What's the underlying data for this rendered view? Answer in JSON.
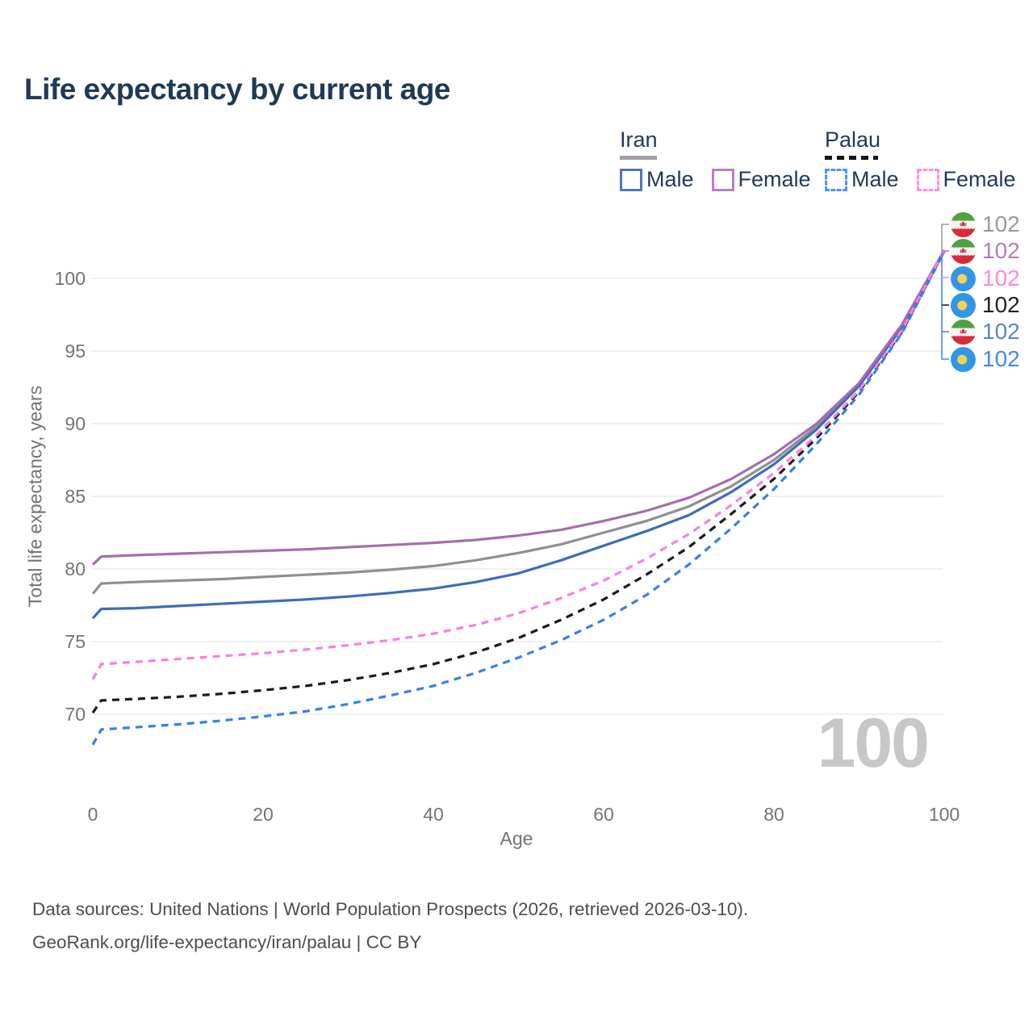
{
  "title": "Life expectancy by current age",
  "colors": {
    "title_text": "#1f3a57",
    "legend_text": "#22395c",
    "axis_text": "#737373",
    "gridline": "#e7e7e7",
    "watermark": "#c7c7c7",
    "iran_underline": "#a1a1a1",
    "palau_underline": "#151515"
  },
  "icons": {
    "iran_flag": "iran-flag-icon",
    "palau_flag": "palau-flag-icon"
  },
  "legend": {
    "groups": [
      {
        "name": "Iran",
        "items": [
          {
            "label": "Male"
          },
          {
            "label": "Female"
          }
        ]
      },
      {
        "name": "Palau",
        "items": [
          {
            "label": "Male"
          },
          {
            "label": "Female"
          }
        ]
      }
    ]
  },
  "age_indicator": "100",
  "endpoint_labels": [
    {
      "flag": "iran",
      "series": "Iran Both sexes",
      "value": "102",
      "color": "#9a9a9a"
    },
    {
      "flag": "iran",
      "series": "Iran Female",
      "value": "102",
      "color": "#b47cc0"
    },
    {
      "flag": "palau",
      "series": "Palau Female",
      "value": "102",
      "color": "#ff85e8"
    },
    {
      "flag": "palau",
      "series": "Palau Both sexes",
      "value": "102",
      "color": "#222222"
    },
    {
      "flag": "iran",
      "series": "Iran Male",
      "value": "102",
      "color": "#5e86c8"
    },
    {
      "flag": "palau",
      "series": "Palau Male",
      "value": "102",
      "color": "#3f8af0"
    }
  ],
  "chart_data": {
    "type": "line",
    "title": "Life expectancy by current age",
    "xlabel": "Age",
    "ylabel": "Total life expectancy, years",
    "x_ticks": [
      0,
      20,
      40,
      60,
      80,
      100
    ],
    "y_ticks": [
      70,
      75,
      80,
      85,
      90,
      95,
      100
    ],
    "xlim": [
      0,
      100
    ],
    "ylim": [
      66.5,
      103.5
    ],
    "grid": "horizontal",
    "legend_position": "top-right",
    "ages": [
      0,
      1,
      5,
      10,
      15,
      20,
      25,
      30,
      35,
      40,
      45,
      50,
      55,
      60,
      65,
      70,
      75,
      80,
      85,
      90,
      95,
      100
    ],
    "series": [
      {
        "name": "Iran Both sexes",
        "country": "Iran",
        "sex": "Both",
        "style": "solid",
        "color": "#8f8f8f",
        "values": [
          78.3,
          79.0,
          79.1,
          79.2,
          79.3,
          79.45,
          79.6,
          79.75,
          79.95,
          80.2,
          80.6,
          81.1,
          81.7,
          82.5,
          83.3,
          84.3,
          85.7,
          87.5,
          89.8,
          92.7,
          96.7,
          101.9
        ]
      },
      {
        "name": "Iran Male",
        "country": "Iran",
        "sex": "Male",
        "style": "solid",
        "color": "#3d6cbd",
        "values": [
          76.6,
          77.25,
          77.3,
          77.45,
          77.6,
          77.75,
          77.9,
          78.1,
          78.35,
          78.65,
          79.1,
          79.7,
          80.6,
          81.6,
          82.6,
          83.7,
          85.3,
          87.2,
          89.6,
          92.6,
          96.6,
          101.9
        ]
      },
      {
        "name": "Iran Female",
        "country": "Iran",
        "sex": "Female",
        "style": "solid",
        "color": "#a76cb0",
        "values": [
          80.3,
          80.85,
          80.95,
          81.05,
          81.15,
          81.25,
          81.35,
          81.5,
          81.65,
          81.8,
          82.0,
          82.3,
          82.7,
          83.3,
          84.0,
          84.9,
          86.2,
          87.9,
          90.0,
          92.8,
          96.8,
          101.95
        ]
      },
      {
        "name": "Palau Both sexes",
        "country": "Palau",
        "sex": "Both",
        "style": "dashed",
        "color": "#1a1a1a",
        "values": [
          70.1,
          70.95,
          71.05,
          71.2,
          71.4,
          71.65,
          71.95,
          72.35,
          72.85,
          73.45,
          74.25,
          75.25,
          76.5,
          77.9,
          79.6,
          81.5,
          83.8,
          86.2,
          89.0,
          92.2,
          96.3,
          101.9
        ]
      },
      {
        "name": "Palau Male",
        "country": "Palau",
        "sex": "Male",
        "style": "dashed",
        "color": "#2e82ef",
        "values": [
          67.9,
          68.95,
          69.1,
          69.3,
          69.55,
          69.85,
          70.2,
          70.7,
          71.3,
          71.95,
          72.85,
          73.9,
          75.1,
          76.5,
          78.2,
          80.3,
          82.8,
          85.5,
          88.6,
          92.0,
          96.2,
          101.85
        ]
      },
      {
        "name": "Palau Female",
        "country": "Palau",
        "sex": "Female",
        "style": "dashed",
        "color": "#fb7ce8",
        "values": [
          72.4,
          73.45,
          73.6,
          73.8,
          74.0,
          74.2,
          74.45,
          74.75,
          75.1,
          75.55,
          76.15,
          76.95,
          78.0,
          79.2,
          80.7,
          82.4,
          84.4,
          86.6,
          89.2,
          92.3,
          96.4,
          101.95
        ]
      }
    ]
  },
  "footer": {
    "line1": "Data sources: United Nations | World Population Prospects (2026, retrieved 2026-03-10).",
    "line2": "GeoRank.org/life-expectancy/iran/palau | CC BY"
  }
}
